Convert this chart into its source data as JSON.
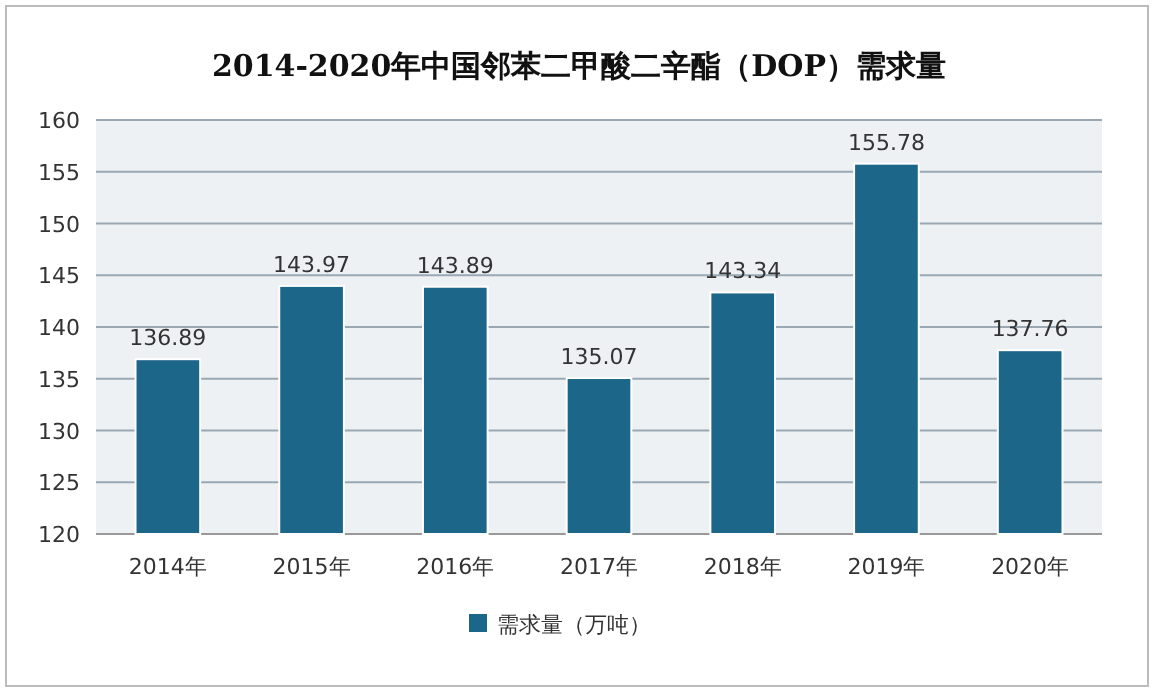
{
  "chart_data": {
    "type": "bar",
    "title": "2014-2020年中国邻苯二甲酸二辛酯（DOP）需求量",
    "categories": [
      "2014年",
      "2015年",
      "2016年",
      "2017年",
      "2018年",
      "2019年",
      "2020年"
    ],
    "series": [
      {
        "name": "需求量（万吨）",
        "color": "#1c6689",
        "values": [
          136.89,
          143.97,
          143.89,
          135.07,
          143.34,
          155.78,
          137.76
        ]
      }
    ],
    "ylim": [
      120,
      160
    ],
    "yticks": [
      120,
      125,
      130,
      135,
      140,
      145,
      150,
      155,
      160
    ],
    "grid": "y",
    "legend": "bottom",
    "data_labels": true
  }
}
